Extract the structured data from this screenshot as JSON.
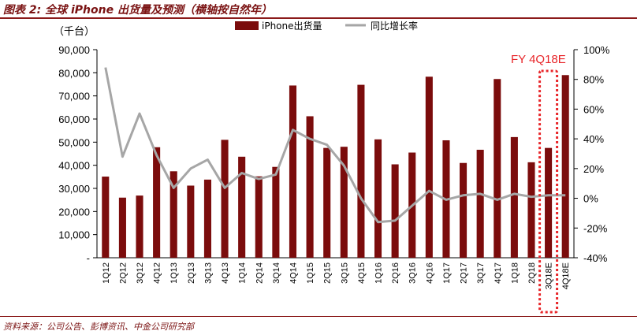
{
  "title": "图表 2: 全球 iPhone 出货量及预测（横轴按自然年）",
  "source": "资料来源：公司公告、彭博资讯、中金公司研究部",
  "colors": {
    "bar": "#7b0c0c",
    "line": "#a6a6a6",
    "accent": "#e8262a",
    "frame": "#8b1a1a"
  },
  "chart_data": {
    "type": "bar",
    "unit_label": "（千台）",
    "callout": "FY 4Q18E",
    "categories": [
      "1Q12",
      "2Q12",
      "3Q12",
      "4Q12",
      "1Q13",
      "2Q13",
      "3Q13",
      "4Q13",
      "1Q14",
      "2Q14",
      "3Q14",
      "4Q14",
      "1Q15",
      "2Q15",
      "3Q15",
      "4Q15",
      "1Q16",
      "2Q16",
      "3Q16",
      "4Q16",
      "1Q17",
      "2Q17",
      "3Q17",
      "4Q17",
      "1Q18",
      "2Q18",
      "3Q18E",
      "4Q18E"
    ],
    "highlighted_categories": [
      "3Q18E"
    ],
    "series": [
      {
        "name": "iPhone出货量",
        "type": "bar",
        "axis": "left",
        "values": [
          35100,
          26000,
          26900,
          47800,
          37400,
          31200,
          33800,
          51000,
          43700,
          35200,
          39300,
          74500,
          61200,
          47500,
          48000,
          74800,
          51200,
          40400,
          45500,
          78300,
          50800,
          41000,
          46700,
          77300,
          52200,
          41300,
          47500,
          79000
        ]
      },
      {
        "name": "同比增长率",
        "type": "line",
        "axis": "right",
        "values": [
          88,
          28,
          57,
          29,
          7,
          20,
          26,
          7,
          17,
          13,
          16,
          46,
          40,
          36,
          22,
          0,
          -16,
          -15,
          -5,
          5,
          -1,
          2,
          3,
          -1,
          3,
          1,
          2,
          2
        ]
      }
    ],
    "y_left": {
      "min": 0,
      "max": 90000,
      "step": 10000,
      "tick_labels": [
        "-",
        "10,000",
        "20,000",
        "30,000",
        "40,000",
        "50,000",
        "60,000",
        "70,000",
        "80,000",
        "90,000"
      ]
    },
    "y_right": {
      "min": -40,
      "max": 100,
      "step": 20,
      "tick_labels": [
        "-40%",
        "-20%",
        "0%",
        "20%",
        "40%",
        "60%",
        "80%",
        "100%"
      ]
    },
    "legend": [
      "iPhone出货量",
      "同比增长率"
    ],
    "legend_position": "top"
  }
}
